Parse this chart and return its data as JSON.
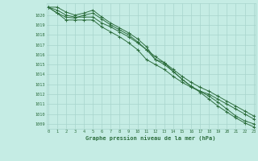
{
  "title": "Graphe pression niveau de la mer (hPa)",
  "background_color": "#c5ece4",
  "plot_bg_color": "#c5ece4",
  "grid_color": "#a8d5cc",
  "line_color": "#2d6e3e",
  "xlim": [
    -0.2,
    23.2
  ],
  "ylim": [
    1008.5,
    1021.2
  ],
  "yticks": [
    1009,
    1010,
    1011,
    1012,
    1013,
    1014,
    1015,
    1016,
    1017,
    1018,
    1019,
    1020
  ],
  "xticks": [
    0,
    1,
    2,
    3,
    4,
    5,
    6,
    7,
    8,
    9,
    10,
    11,
    12,
    13,
    14,
    15,
    16,
    17,
    18,
    19,
    20,
    21,
    22,
    23
  ],
  "series": [
    [
      1020.8,
      1020.8,
      1020.3,
      1020.0,
      1020.2,
      1020.5,
      1019.8,
      1019.2,
      1018.7,
      1018.2,
      1017.6,
      1016.8,
      1015.5,
      1015.2,
      1014.3,
      1013.5,
      1012.8,
      1012.2,
      1011.5,
      1010.8,
      1010.2,
      1009.6,
      1009.1,
      1008.7
    ],
    [
      1020.8,
      1020.2,
      1019.8,
      1019.7,
      1020.0,
      1020.2,
      1019.6,
      1019.0,
      1018.5,
      1018.0,
      1017.3,
      1016.5,
      1015.5,
      1015.0,
      1014.3,
      1013.5,
      1012.8,
      1012.3,
      1011.8,
      1011.2,
      1010.5,
      1009.8,
      1009.3,
      1009.0
    ],
    [
      1020.8,
      1020.2,
      1019.5,
      1019.5,
      1019.5,
      1019.5,
      1018.8,
      1018.3,
      1017.8,
      1017.2,
      1016.5,
      1015.5,
      1015.0,
      1014.5,
      1013.8,
      1013.2,
      1012.7,
      1012.3,
      1012.0,
      1011.5,
      1011.0,
      1010.5,
      1010.0,
      1009.5
    ],
    [
      1020.8,
      1020.5,
      1020.0,
      1019.8,
      1019.8,
      1019.8,
      1019.2,
      1018.8,
      1018.3,
      1017.8,
      1017.2,
      1016.5,
      1015.8,
      1015.2,
      1014.5,
      1013.8,
      1013.2,
      1012.7,
      1012.3,
      1011.8,
      1011.3,
      1010.8,
      1010.3,
      1009.8
    ]
  ]
}
